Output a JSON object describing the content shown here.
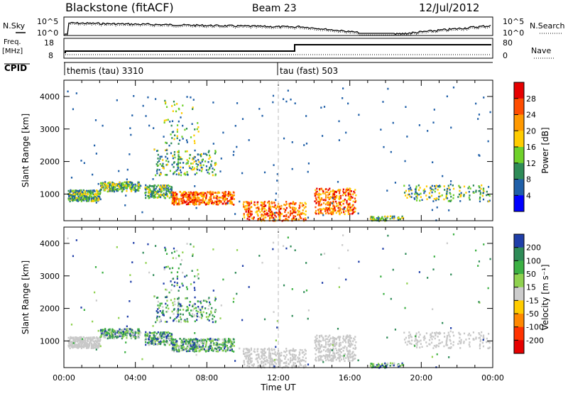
{
  "header": {
    "station": "Blackstone (fitACF)",
    "beam": "Beam 23",
    "date": "12/Jul/2012"
  },
  "top_panels": {
    "nsky_label": "N.Sky",
    "nsearch_label": "N.Search",
    "freq_label_1": "Freq.",
    "freq_label_2": "[MHz]",
    "nave_label": "Nave",
    "cpid_label": "CPID",
    "noise_ticks_left": [
      "10^5",
      "10^0"
    ],
    "noise_ticks_right": [
      "10^5",
      "10^0"
    ],
    "freq_ticks": [
      "18",
      "8"
    ],
    "nave_ticks": [
      "80",
      "0"
    ],
    "cpid_segments": [
      {
        "label": "themis (tau) 3310",
        "start_hour": 0,
        "end_hour": 12.0
      },
      {
        "label": "tau (fast) 503",
        "start_hour": 12.0,
        "end_hour": 24
      }
    ]
  },
  "chart_data": [
    {
      "type": "heatmap",
      "title": "",
      "xlabel": "",
      "ylabel": "Slant Range [km]",
      "xlim_hours": [
        0,
        24
      ],
      "ylim": [
        180,
        4500
      ],
      "y_ticks": [
        "4000",
        "3000",
        "2000",
        "1000"
      ],
      "colorbar_label": "Power [dB]",
      "colorbar_ticks": [
        "28",
        "24",
        "20",
        "16",
        "12",
        "8",
        "4"
      ],
      "colorbar_colors": [
        "#e60000",
        "#ff4d00",
        "#ff9900",
        "#ffcc00",
        "#6fd12a",
        "#2e8b57",
        "#1f5fa8",
        "#0000ff"
      ]
    },
    {
      "type": "heatmap",
      "title": "",
      "xlabel": "Time UT",
      "ylabel": "Slant Range [km]",
      "xlim_hours": [
        0,
        24
      ],
      "ylim": [
        180,
        4500
      ],
      "x_ticks": [
        "00:00",
        "04:00",
        "08:00",
        "12:00",
        "16:00",
        "20:00",
        "00:00"
      ],
      "y_ticks": [
        "4000",
        "3000",
        "2000",
        "1000"
      ],
      "colorbar_label": "Velocity [m s⁻¹]",
      "colorbar_ticks": [
        "200",
        "100",
        "50",
        "15",
        "-15",
        "-50",
        "-100",
        "-200"
      ],
      "colorbar_colors": [
        "#1f3ea8",
        "#2e8b57",
        "#3cb043",
        "#8fd14f",
        "#cccccc",
        "#ffcc00",
        "#ff8800",
        "#ff3300",
        "#e60000"
      ]
    }
  ]
}
